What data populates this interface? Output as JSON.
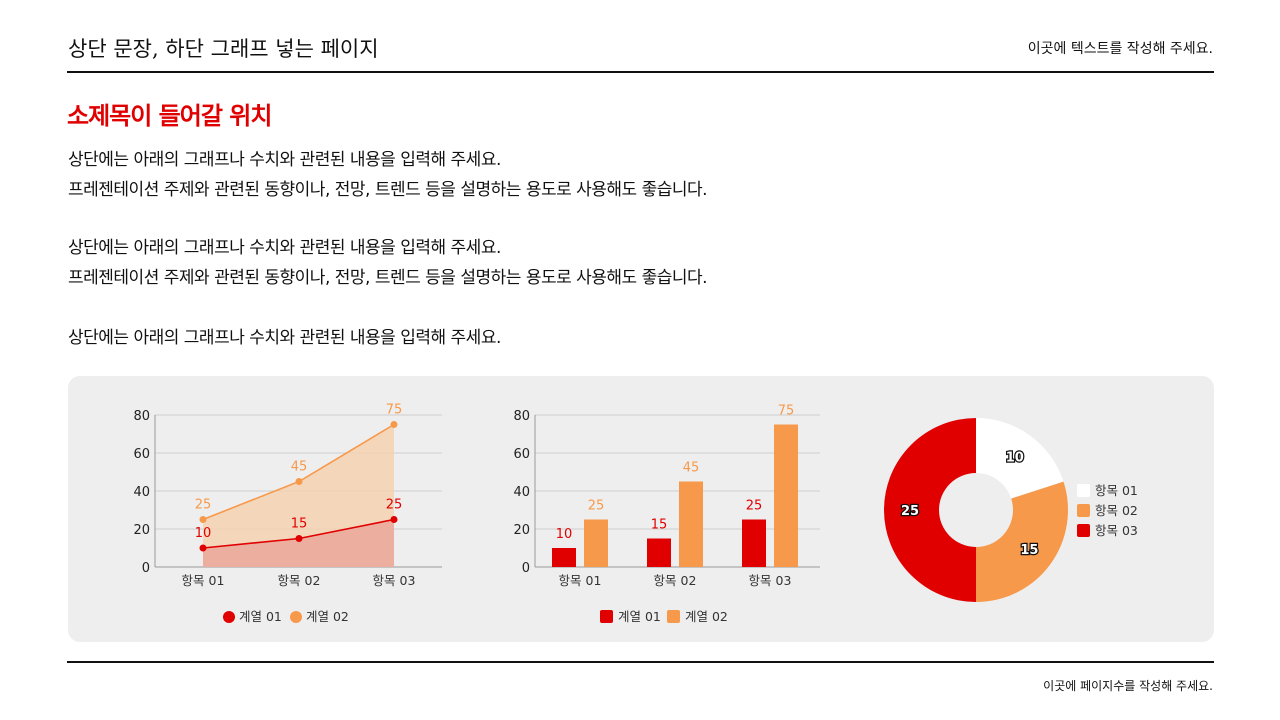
{
  "header": {
    "title": "상단 문장, 하단 그래프 넣는 페이지",
    "right_text": "이곳에 텍스트를 작성해 주세요."
  },
  "subtitle": "소제목이 들어갈 위치",
  "paragraphs": [
    [
      "상단에는 아래의 그래프나 수치와 관련된 내용을 입력해 주세요.",
      "프레젠테이션 주제와 관련된 동향이나, 전망, 트렌드 등을 설명하는 용도로 사용해도 좋습니다."
    ],
    [
      "상단에는 아래의 그래프나 수치와 관련된 내용을 입력해 주세요.",
      "프레젠테이션 주제와 관련된 동향이나, 전망, 트렌드 등을 설명하는 용도로 사용해도 좋습니다."
    ],
    [
      "상단에는 아래의 그래프나 수치와 관련된 내용을 입력해 주세요."
    ]
  ],
  "footer": {
    "text": "이곳에 페이지수를 작성해 주세요."
  },
  "colors": {
    "series1": "#e00000",
    "series2": "#f7994a",
    "white": "#ffffff"
  },
  "chart_data": [
    {
      "type": "area",
      "categories": [
        "항목 01",
        "항목 02",
        "항목 03"
      ],
      "ylim": [
        0,
        80
      ],
      "yticks": [
        0,
        20,
        40,
        60,
        80
      ],
      "grid": true,
      "legend": "bottom",
      "series": [
        {
          "name": "계열 01",
          "values": [
            10,
            15,
            25
          ]
        },
        {
          "name": "계열 02",
          "values": [
            25,
            45,
            75
          ]
        }
      ]
    },
    {
      "type": "bar",
      "categories": [
        "항목 01",
        "항목 02",
        "항목 03"
      ],
      "ylim": [
        0,
        80
      ],
      "yticks": [
        0,
        20,
        40,
        60,
        80
      ],
      "grid": true,
      "legend": "bottom",
      "series": [
        {
          "name": "계열 01",
          "values": [
            10,
            15,
            25
          ]
        },
        {
          "name": "계열 02",
          "values": [
            25,
            45,
            75
          ]
        }
      ]
    },
    {
      "type": "pie",
      "donut": true,
      "legend": "right",
      "categories": [
        "항목 01",
        "항목 02",
        "항목 03"
      ],
      "values": [
        10,
        15,
        25
      ]
    }
  ]
}
